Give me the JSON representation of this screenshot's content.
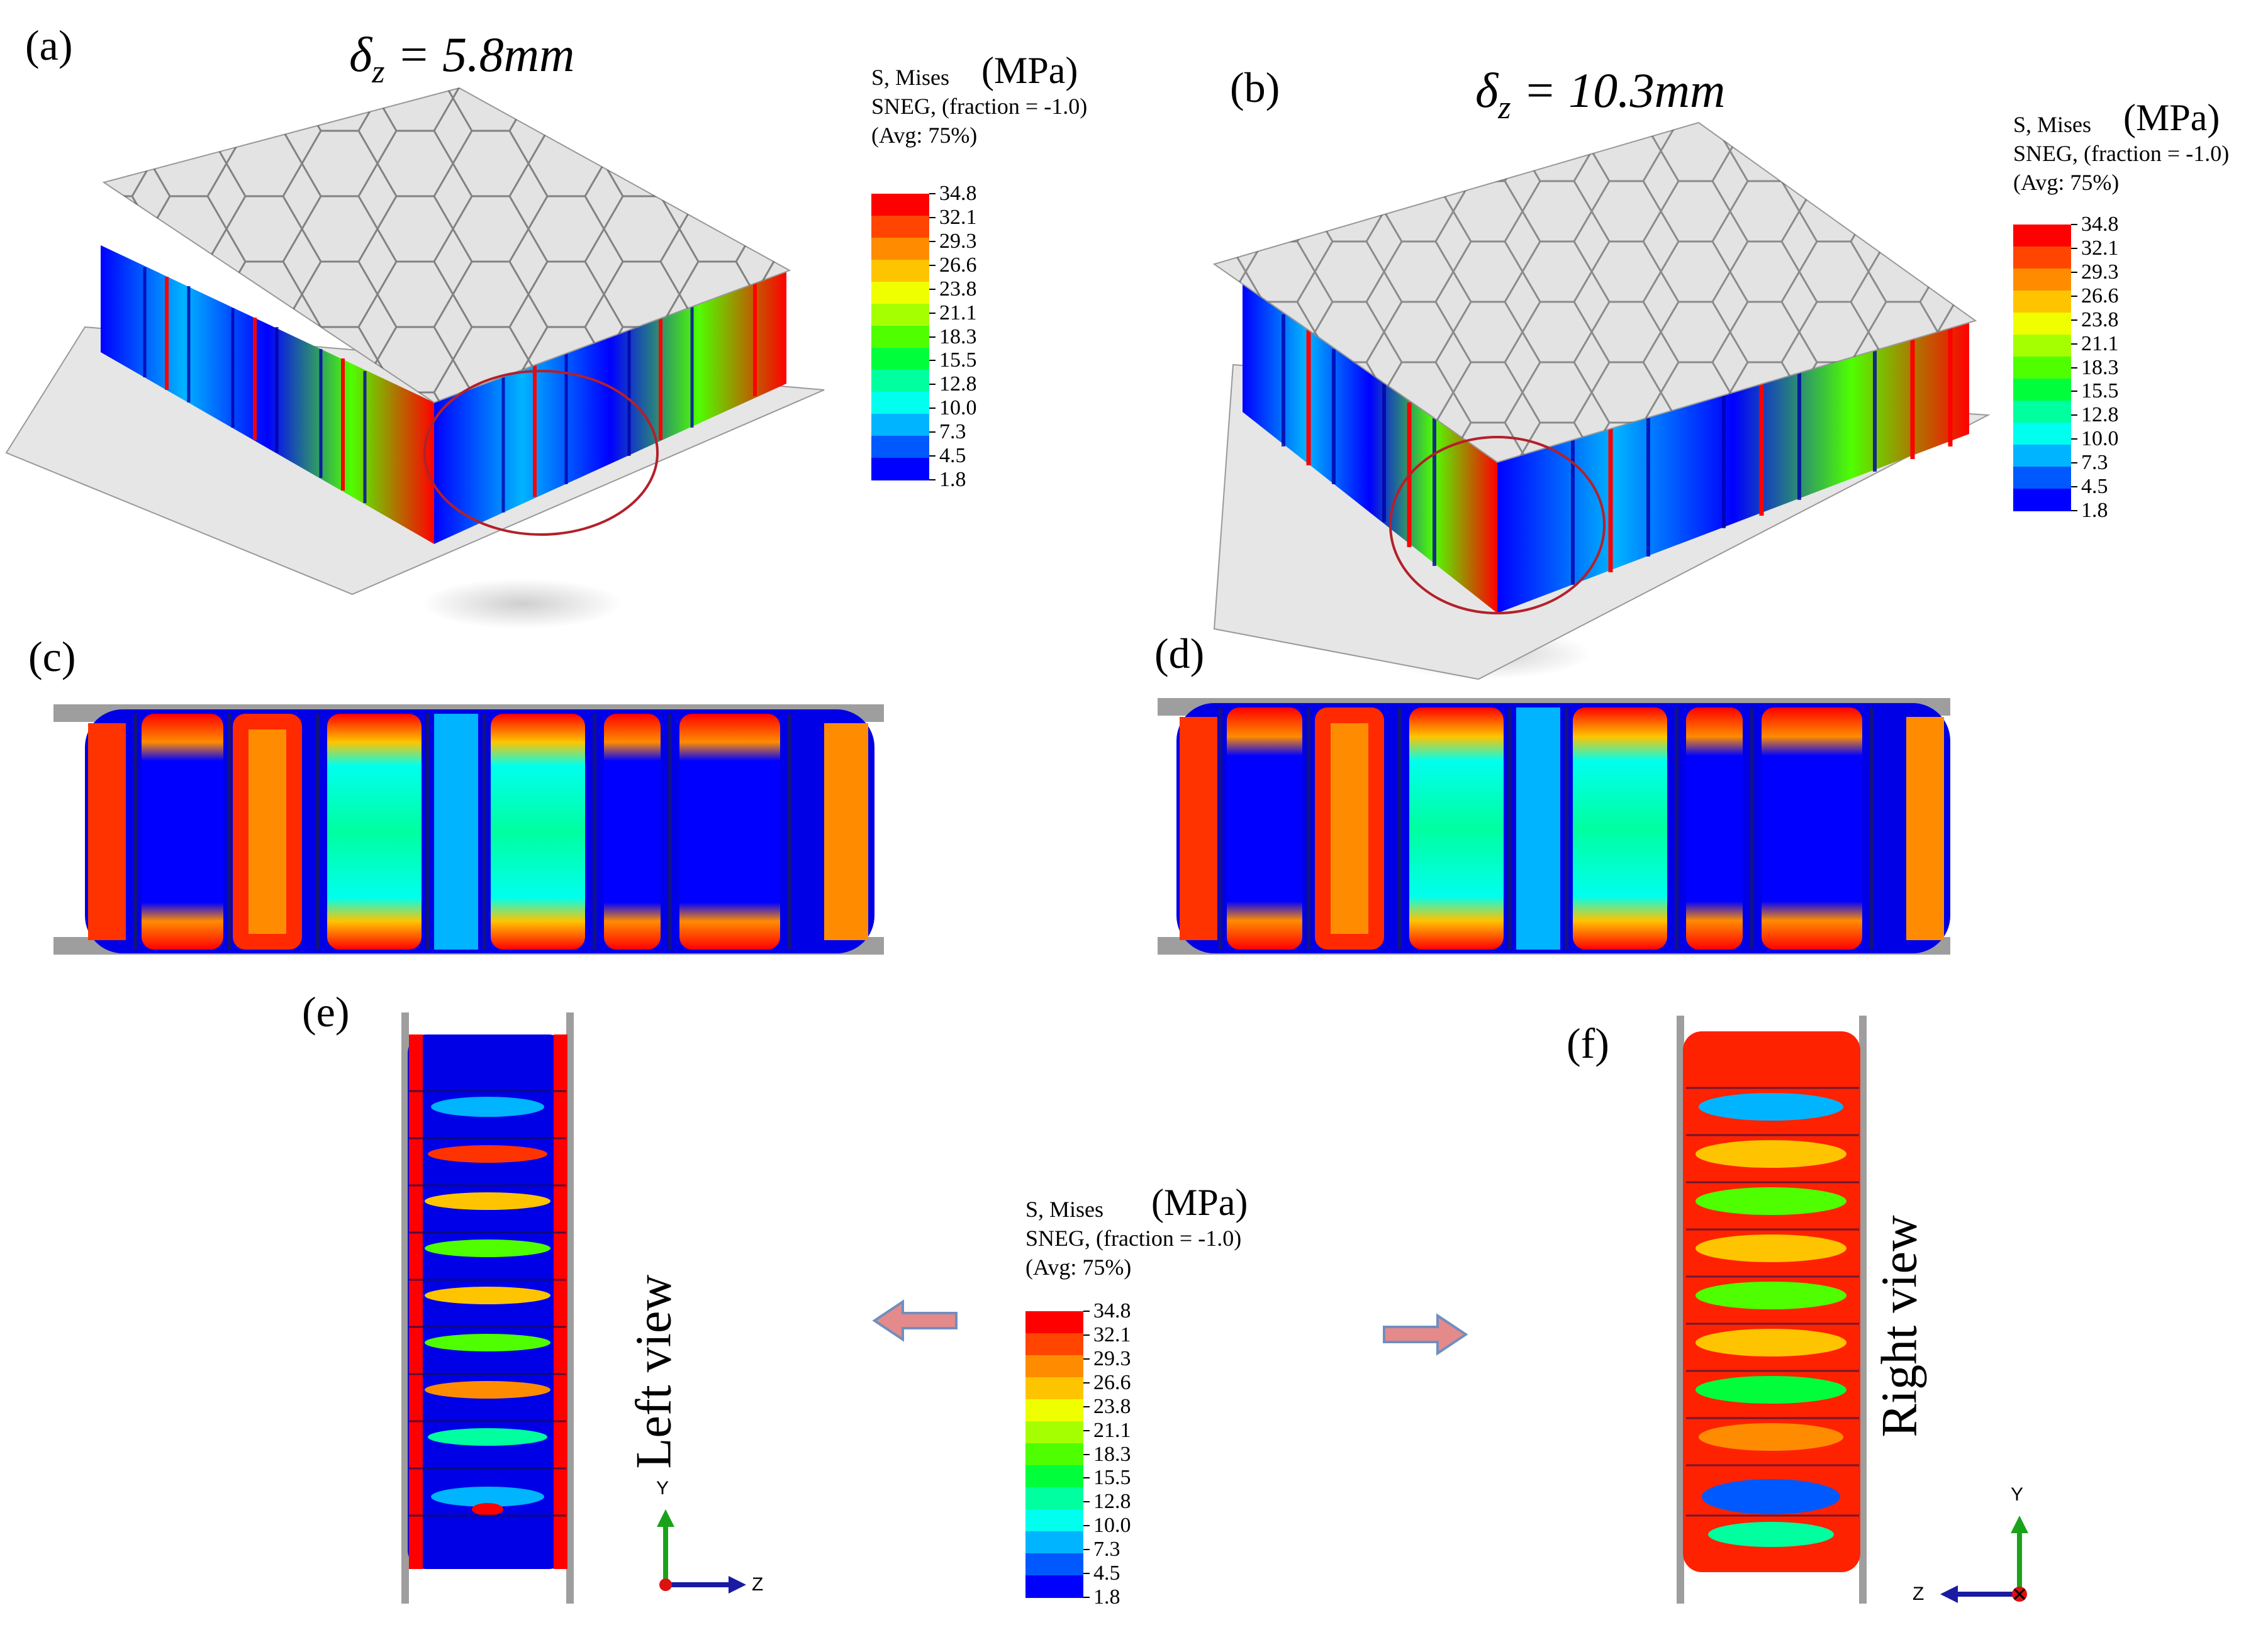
{
  "panels": {
    "a": {
      "label": "(a)",
      "displacement": "5.8mm"
    },
    "b": {
      "label": "(b)",
      "displacement": "10.3mm"
    },
    "c": {
      "label": "(c)"
    },
    "d": {
      "label": "(d)"
    },
    "e": {
      "label": "(e)",
      "view": "Left view"
    },
    "f": {
      "label": "(f)",
      "view": "Right view"
    }
  },
  "delta_symbol": "δ",
  "delta_sub": "z",
  "equals": " = ",
  "legend": {
    "line1": "S, Mises",
    "unit": "(MPa)",
    "line2": "SNEG, (fraction = -1.0)",
    "line3": "(Avg: 75%)",
    "ticks": [
      "34.8",
      "32.1",
      "29.3",
      "26.6",
      "23.8",
      "21.1",
      "18.3",
      "15.5",
      "12.8",
      "10.0",
      "7.3",
      "4.5",
      "1.8"
    ],
    "colors": [
      "#ff0000",
      "#ff4500",
      "#ff8c00",
      "#ffc400",
      "#f0ff00",
      "#a6ff00",
      "#4fff00",
      "#00ff3a",
      "#00ff9f",
      "#00ffee",
      "#00b4ff",
      "#0059ff",
      "#0000ff"
    ]
  },
  "axes": {
    "e": {
      "y": "Y",
      "h": "Z"
    },
    "f": {
      "y": "Y",
      "h": "Z"
    }
  }
}
